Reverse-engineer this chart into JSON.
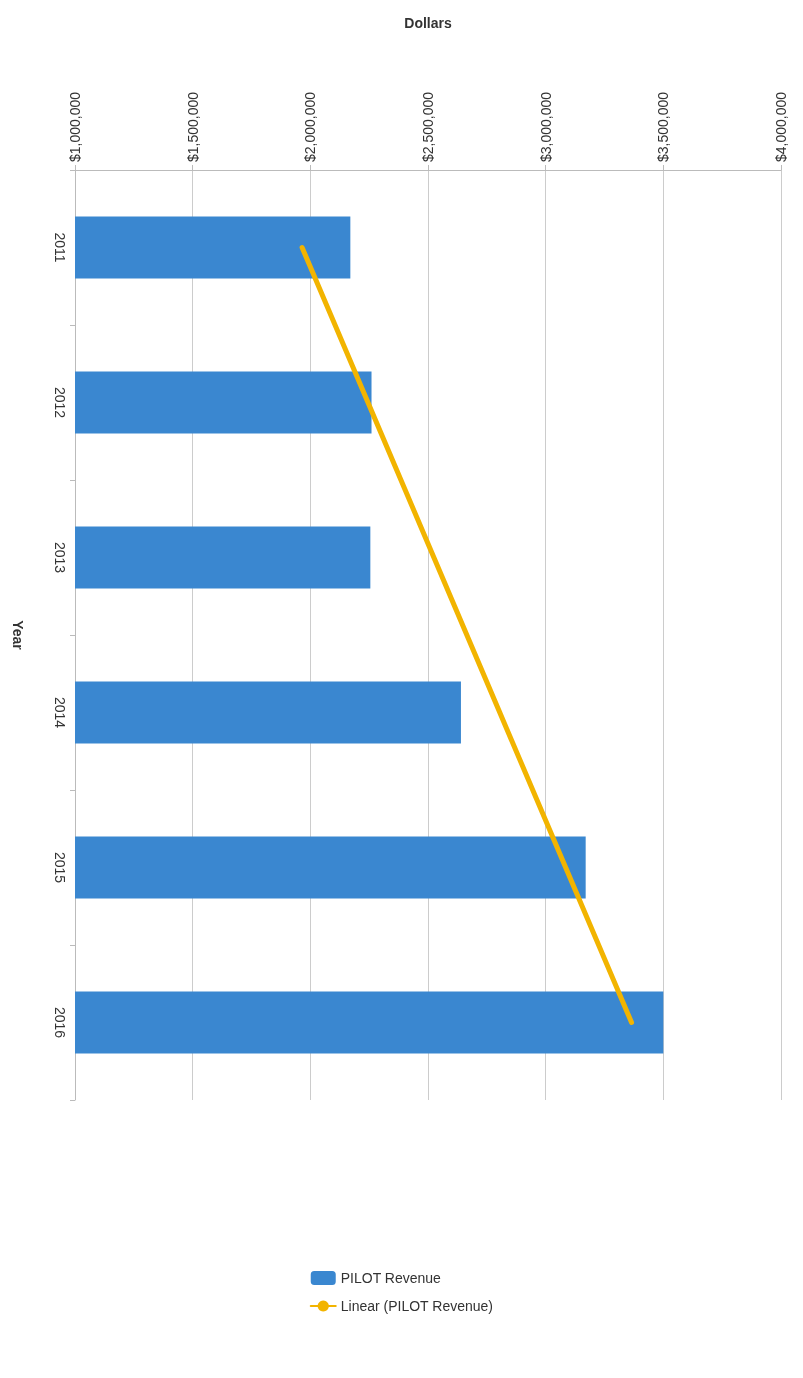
{
  "chart_data": {
    "type": "bar",
    "orientation": "horizontal",
    "xlabel": "Dollars",
    "ylabel": "Year",
    "categories": [
      "2011",
      "2012",
      "2013",
      "2014",
      "2015",
      "2016"
    ],
    "series": [
      {
        "name": "PILOT Revenue",
        "color": "#3a87d0",
        "values": [
          2170000,
          2260000,
          2255000,
          2640000,
          3170000,
          3500000
        ]
      },
      {
        "name": "Linear (PILOT Revenue)",
        "type": "line",
        "color": "#f2b400",
        "values": [
          1965000,
          2245000,
          2525000,
          2805000,
          3085000,
          3365000
        ]
      }
    ],
    "xlim": [
      1000000,
      4000000
    ],
    "xticks": [
      {
        "value": 1000000,
        "label": "$1,000,000"
      },
      {
        "value": 1500000,
        "label": "$1,500,000"
      },
      {
        "value": 2000000,
        "label": "$2,000,000"
      },
      {
        "value": 2500000,
        "label": "$2,500,000"
      },
      {
        "value": 3000000,
        "label": "$3,000,000"
      },
      {
        "value": 3500000,
        "label": "$3,500,000"
      },
      {
        "value": 4000000,
        "label": "$4,000,000"
      }
    ],
    "grid": "x",
    "legend": "bottom",
    "marker": "none"
  }
}
